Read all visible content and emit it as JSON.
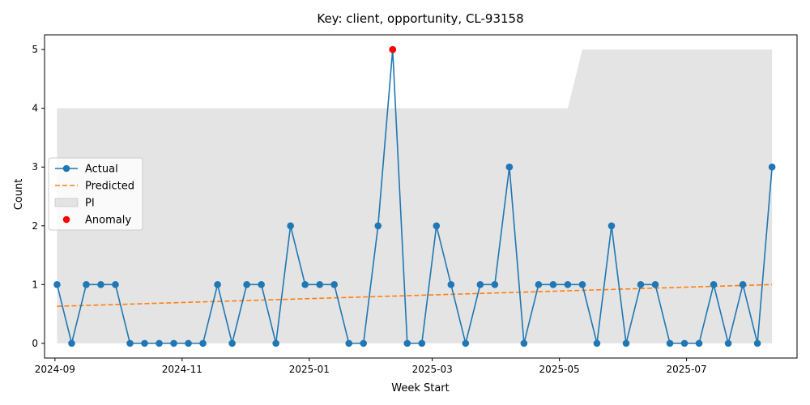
{
  "chart_data": {
    "type": "line",
    "title": "Key: client, opportunity, CL-93158",
    "xlabel": "Week Start",
    "ylabel": "Count",
    "ylim": [
      -0.25,
      5.25
    ],
    "xlim": [
      "2024-08-27",
      "2025-08-23"
    ],
    "x_ticks": [
      {
        "date": "2024-09-01",
        "label": "2024-09"
      },
      {
        "date": "2024-11-01",
        "label": "2024-11"
      },
      {
        "date": "2025-01-01",
        "label": "2025-01"
      },
      {
        "date": "2025-03-01",
        "label": "2025-03"
      },
      {
        "date": "2025-05-01",
        "label": "2025-05"
      },
      {
        "date": "2025-07-01",
        "label": "2025-07"
      }
    ],
    "y_ticks": [
      0,
      1,
      2,
      3,
      4,
      5
    ],
    "grid": false,
    "legend_position": "center-left",
    "weeks": [
      "2024-09-02",
      "2024-09-09",
      "2024-09-16",
      "2024-09-23",
      "2024-09-30",
      "2024-10-07",
      "2024-10-14",
      "2024-10-21",
      "2024-10-28",
      "2024-11-04",
      "2024-11-11",
      "2024-11-18",
      "2024-11-25",
      "2024-12-02",
      "2024-12-09",
      "2024-12-16",
      "2024-12-23",
      "2024-12-30",
      "2025-01-06",
      "2025-01-13",
      "2025-01-20",
      "2025-01-27",
      "2025-02-03",
      "2025-02-10",
      "2025-02-17",
      "2025-02-24",
      "2025-03-03",
      "2025-03-10",
      "2025-03-17",
      "2025-03-24",
      "2025-03-31",
      "2025-04-07",
      "2025-04-14",
      "2025-04-21",
      "2025-04-28",
      "2025-05-05",
      "2025-05-12",
      "2025-05-19",
      "2025-05-26",
      "2025-06-02",
      "2025-06-09",
      "2025-06-16",
      "2025-06-23",
      "2025-06-30",
      "2025-07-07",
      "2025-07-14",
      "2025-07-21",
      "2025-07-28",
      "2025-08-04",
      "2025-08-11"
    ],
    "series": [
      {
        "name": "Actual",
        "color": "#1f77b4",
        "style": "solid-markers",
        "values": [
          1,
          0,
          1,
          1,
          1,
          0,
          0,
          0,
          0,
          0,
          0,
          1,
          0,
          1,
          1,
          0,
          2,
          1,
          1,
          1,
          0,
          0,
          2,
          5,
          0,
          0,
          2,
          1,
          0,
          1,
          1,
          3,
          0,
          1,
          1,
          1,
          1,
          0,
          2,
          0,
          1,
          1,
          0,
          0,
          0,
          1,
          0,
          1,
          0,
          3
        ]
      },
      {
        "name": "Predicted",
        "color": "#ff7f0e",
        "style": "dashed",
        "values_start": 0.63,
        "values_end": 1.0
      }
    ],
    "pi_band": {
      "name": "PI",
      "color": "#d9d9d9",
      "lower": 0,
      "upper_values": [
        4,
        4,
        4,
        4,
        4,
        4,
        4,
        4,
        4,
        4,
        4,
        4,
        4,
        4,
        4,
        4,
        4,
        4,
        4,
        4,
        4,
        4,
        4,
        4,
        4,
        4,
        4,
        4,
        4,
        4,
        4,
        4,
        4,
        4,
        4,
        4,
        5,
        5,
        5,
        5,
        5,
        5,
        5,
        5,
        5,
        5,
        5,
        5,
        5,
        5
      ]
    },
    "anomalies": {
      "name": "Anomaly",
      "color": "#ff0000",
      "points": [
        {
          "date": "2025-02-10",
          "value": 5
        }
      ]
    },
    "legend": [
      "Actual",
      "Predicted",
      "PI",
      "Anomaly"
    ]
  }
}
